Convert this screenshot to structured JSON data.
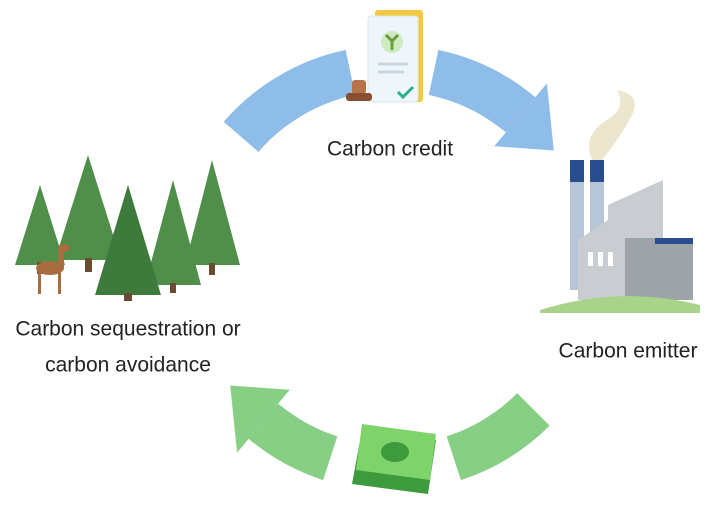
{
  "nodes": [
    {
      "label": "Carbon credit"
    },
    {
      "label": "Carbon emitter"
    },
    {
      "label": [
        "Carbon sequestration or",
        "carbon avoidance"
      ]
    }
  ]
}
